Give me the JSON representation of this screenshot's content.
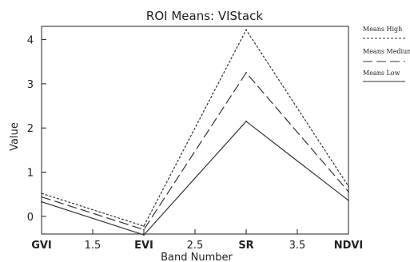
{
  "chart_data": {
    "type": "line",
    "title": "ROI Means: VIStack",
    "xlabel": "Band Number",
    "ylabel": "Value",
    "x": [
      1,
      2,
      3,
      4
    ],
    "xlim": [
      1,
      4
    ],
    "ylim": [
      -0.4,
      4.3
    ],
    "x_ticks": [
      {
        "value": 1,
        "label": "GVI",
        "bold": true
      },
      {
        "value": 1.5,
        "label": "1.5",
        "bold": false
      },
      {
        "value": 2,
        "label": "EVI",
        "bold": true
      },
      {
        "value": 2.5,
        "label": "2.5",
        "bold": false
      },
      {
        "value": 3,
        "label": "SR",
        "bold": true
      },
      {
        "value": 3.5,
        "label": "3.5",
        "bold": false
      },
      {
        "value": 4,
        "label": "NDVI",
        "bold": true
      }
    ],
    "y_ticks": [
      0,
      1,
      2,
      3,
      4
    ],
    "grid": false,
    "legend_position": "right",
    "series": [
      {
        "name": "Means High",
        "values": [
          0.52,
          -0.22,
          4.22,
          0.68
        ],
        "dash": "3,2"
      },
      {
        "name": "Means Medium",
        "values": [
          0.44,
          -0.3,
          3.25,
          0.56
        ],
        "dash": "12,5"
      },
      {
        "name": "Means Low",
        "values": [
          0.33,
          -0.42,
          2.15,
          0.36
        ],
        "dash": ""
      }
    ],
    "colors": {
      "line": "#333333",
      "axis": "#222222",
      "text": "#222222"
    }
  }
}
